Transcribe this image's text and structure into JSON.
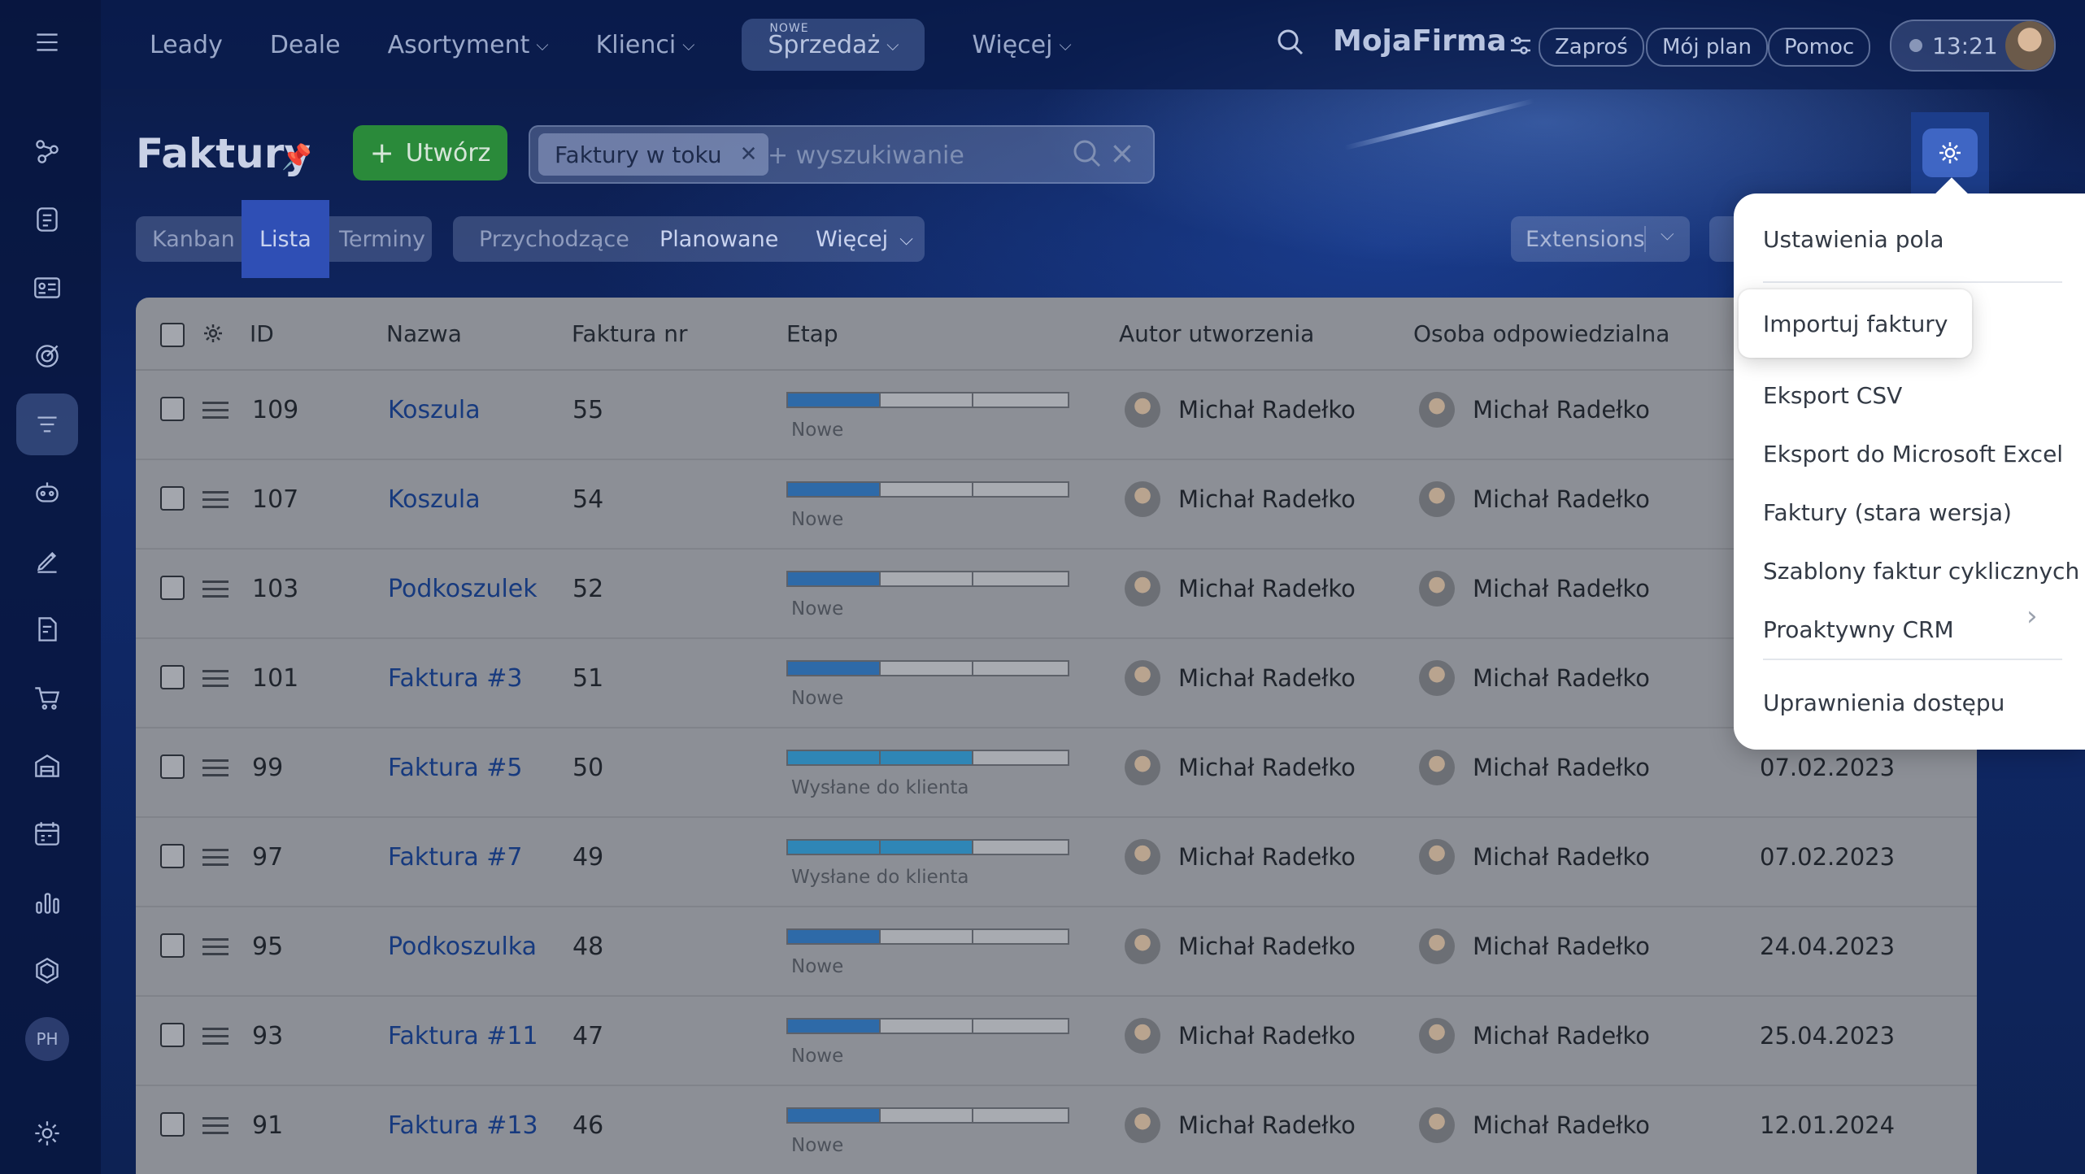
{
  "topbar": {
    "nav": [
      {
        "label": "Leady"
      },
      {
        "label": "Deale"
      },
      {
        "label": "Asortyment"
      },
      {
        "label": "Klienci"
      },
      {
        "label": "Sprzedaż",
        "tag": "NOWE"
      },
      {
        "label": "Więcej"
      }
    ],
    "brand": "MojaFirma",
    "invite": "Zaproś",
    "plan": "Mój plan",
    "help": "Pomoc",
    "clock": "13:21"
  },
  "sidebar": {
    "avatar_initials": "PH"
  },
  "page": {
    "title": "Faktury",
    "create_label": "Utwórz",
    "filter_chip": "Faktury w toku",
    "search_placeholder": "+ wyszukiwanie"
  },
  "view_tabs": [
    "Kanban",
    "Lista",
    "Terminy"
  ],
  "filter_tabs": [
    "Przychodzące",
    "Planowane",
    "Więcej"
  ],
  "extensions_label": "Extensions",
  "table": {
    "headers": [
      "ID",
      "Nazwa",
      "Faktura nr",
      "Etap",
      "Autor utworzenia",
      "Osoba odpowiedzialna"
    ],
    "rows": [
      {
        "id": "109",
        "name": "Koszula",
        "number": "55",
        "stage": "Nowe",
        "progress": 0.33,
        "author": "Michał Radełko",
        "owner": "Michał Radełko",
        "date": ""
      },
      {
        "id": "107",
        "name": "Koszula",
        "number": "54",
        "stage": "Nowe",
        "progress": 0.33,
        "author": "Michał Radełko",
        "owner": "Michał Radełko",
        "date": ""
      },
      {
        "id": "103",
        "name": "Podkoszulek",
        "number": "52",
        "stage": "Nowe",
        "progress": 0.33,
        "author": "Michał Radełko",
        "owner": "Michał Radełko",
        "date": ""
      },
      {
        "id": "101",
        "name": "Faktura #3",
        "number": "51",
        "stage": "Nowe",
        "progress": 0.33,
        "author": "Michał Radełko",
        "owner": "Michał Radełko",
        "date": ""
      },
      {
        "id": "99",
        "name": "Faktura #5",
        "number": "50",
        "stage": "Wysłane do klienta",
        "progress": 0.66,
        "author": "Michał Radełko",
        "owner": "Michał Radełko",
        "date": "07.02.2023"
      },
      {
        "id": "97",
        "name": "Faktura #7",
        "number": "49",
        "stage": "Wysłane do klienta",
        "progress": 0.66,
        "author": "Michał Radełko",
        "owner": "Michał Radełko",
        "date": "07.02.2023"
      },
      {
        "id": "95",
        "name": "Podkoszulka",
        "number": "48",
        "stage": "Nowe",
        "progress": 0.33,
        "author": "Michał Radełko",
        "owner": "Michał Radełko",
        "date": "24.04.2023"
      },
      {
        "id": "93",
        "name": "Faktura #11",
        "number": "47",
        "stage": "Nowe",
        "progress": 0.33,
        "author": "Michał Radełko",
        "owner": "Michał Radełko",
        "date": "25.04.2023"
      },
      {
        "id": "91",
        "name": "Faktura #13",
        "number": "46",
        "stage": "Nowe",
        "progress": 0.33,
        "author": "Michał Radełko",
        "owner": "Michał Radełko",
        "date": "12.01.2024"
      }
    ]
  },
  "settings_menu": {
    "items": [
      "Ustawienia pola",
      "Importuj faktury",
      "Eksport CSV",
      "Eksport do Microsoft Excel",
      "Faktury (stara wersja)",
      "Szablony faktur cyklicznych",
      "Proaktywny CRM",
      "Uprawnienia dostępu"
    ],
    "highlighted": "Importuj faktury"
  },
  "colors": {
    "accent_green": "#2a8a3a",
    "stage_blue": "#2e6aa8",
    "link_blue": "#173a7e",
    "active_tab": "#2f4fb5"
  }
}
